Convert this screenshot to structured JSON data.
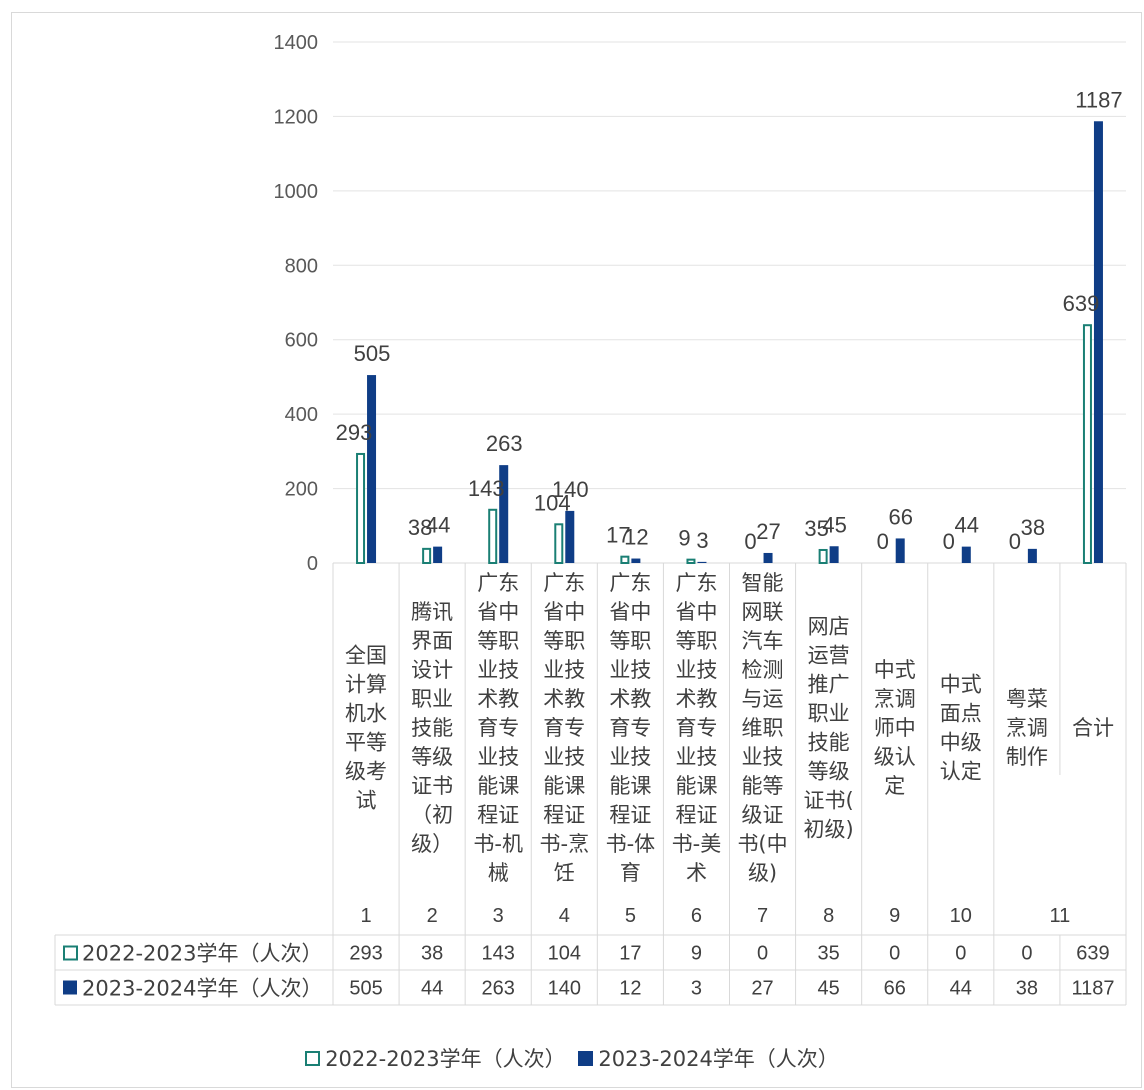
{
  "chart_data": {
    "type": "bar",
    "title": "",
    "xlabel": "",
    "ylabel": "",
    "ylim": [
      0,
      1400
    ],
    "y_ticks": [
      "0",
      "200",
      "400",
      "600",
      "800",
      "1000",
      "1200",
      "1400"
    ],
    "grid": true,
    "legend_position": "bottom",
    "data_table": true,
    "categories": [
      "全国计算机水平等级考试",
      "腾讯界面设计职业技能等级证书（初级）",
      "广东省中等职业技术教育专业技能课程证书-机械",
      "广东省中等职业技术教育专业技能课程证书-烹饪",
      "广东省中等职业技术教育专业技能课程证书-体育",
      "广东省中等职业技术教育专业技能课程证书-美术",
      "智能网联汽车检测与运维职业技能等级证书(中级)",
      "网店运营推广职业技能等级证书(初级)",
      "中式烹调师中级认定",
      "中式面点中级认定",
      "粤菜烹调制作",
      "合计"
    ],
    "category_lines": [
      [
        "全国",
        "计算",
        "机水",
        "平等",
        "级考",
        "试"
      ],
      [
        "腾讯",
        "界面",
        "设计",
        "职业",
        "技能",
        "等级",
        "证书",
        "（初",
        "级）"
      ],
      [
        "广东",
        "省中",
        "等职",
        "业技",
        "术教",
        "育专",
        "业技",
        "能课",
        "程证",
        "书-机",
        "械"
      ],
      [
        "广东",
        "省中",
        "等职",
        "业技",
        "术教",
        "育专",
        "业技",
        "能课",
        "程证",
        "书-烹",
        "饪"
      ],
      [
        "广东",
        "省中",
        "等职",
        "业技",
        "术教",
        "育专",
        "业技",
        "能课",
        "程证",
        "书-体",
        "育"
      ],
      [
        "广东",
        "省中",
        "等职",
        "业技",
        "术教",
        "育专",
        "业技",
        "能课",
        "程证",
        "书-美",
        "术"
      ],
      [
        "智能",
        "网联",
        "汽车",
        "检测",
        "与运",
        "维职",
        "业技",
        "能等",
        "级证",
        "书(中",
        "级)"
      ],
      [
        "网店",
        "运营",
        "推广",
        "职业",
        "技能",
        "等级",
        "证书(",
        "初级)"
      ],
      [
        "中式",
        "烹调",
        "师中",
        "级认",
        "定"
      ],
      [
        "中式",
        "面点",
        "中级",
        "认定"
      ],
      [
        "粤菜",
        "烹调",
        "制作"
      ],
      [
        "合计"
      ]
    ],
    "category_numbers": [
      "1",
      "2",
      "3",
      "4",
      "5",
      "6",
      "7",
      "8",
      "9",
      "10",
      "11",
      ""
    ],
    "series": [
      {
        "name": "2022-2023学年（人次）",
        "values": [
          293,
          38,
          143,
          104,
          17,
          9,
          0,
          35,
          0,
          0,
          0,
          639
        ],
        "color": "#1a7f74",
        "style": "outline"
      },
      {
        "name": "2023-2024学年（人次）",
        "values": [
          505,
          44,
          263,
          140,
          12,
          3,
          27,
          45,
          66,
          44,
          38,
          1187
        ],
        "color": "#0f3d86",
        "style": "filled"
      }
    ],
    "table_rows": [
      {
        "label": "2022-2023学年（人次）",
        "values": [
          "293",
          "38",
          "143",
          "104",
          "17",
          "9",
          "0",
          "35",
          "0",
          "0",
          "0",
          "639"
        ]
      },
      {
        "label": "2023-2024学年（人次）",
        "values": [
          "505",
          "44",
          "263",
          "140",
          "12",
          "3",
          "27",
          "45",
          "66",
          "44",
          "38",
          "1187"
        ]
      }
    ]
  },
  "legend": {
    "items": [
      {
        "label": "2022-2023学年（人次）"
      },
      {
        "label": "2023-2024学年（人次）"
      }
    ]
  }
}
